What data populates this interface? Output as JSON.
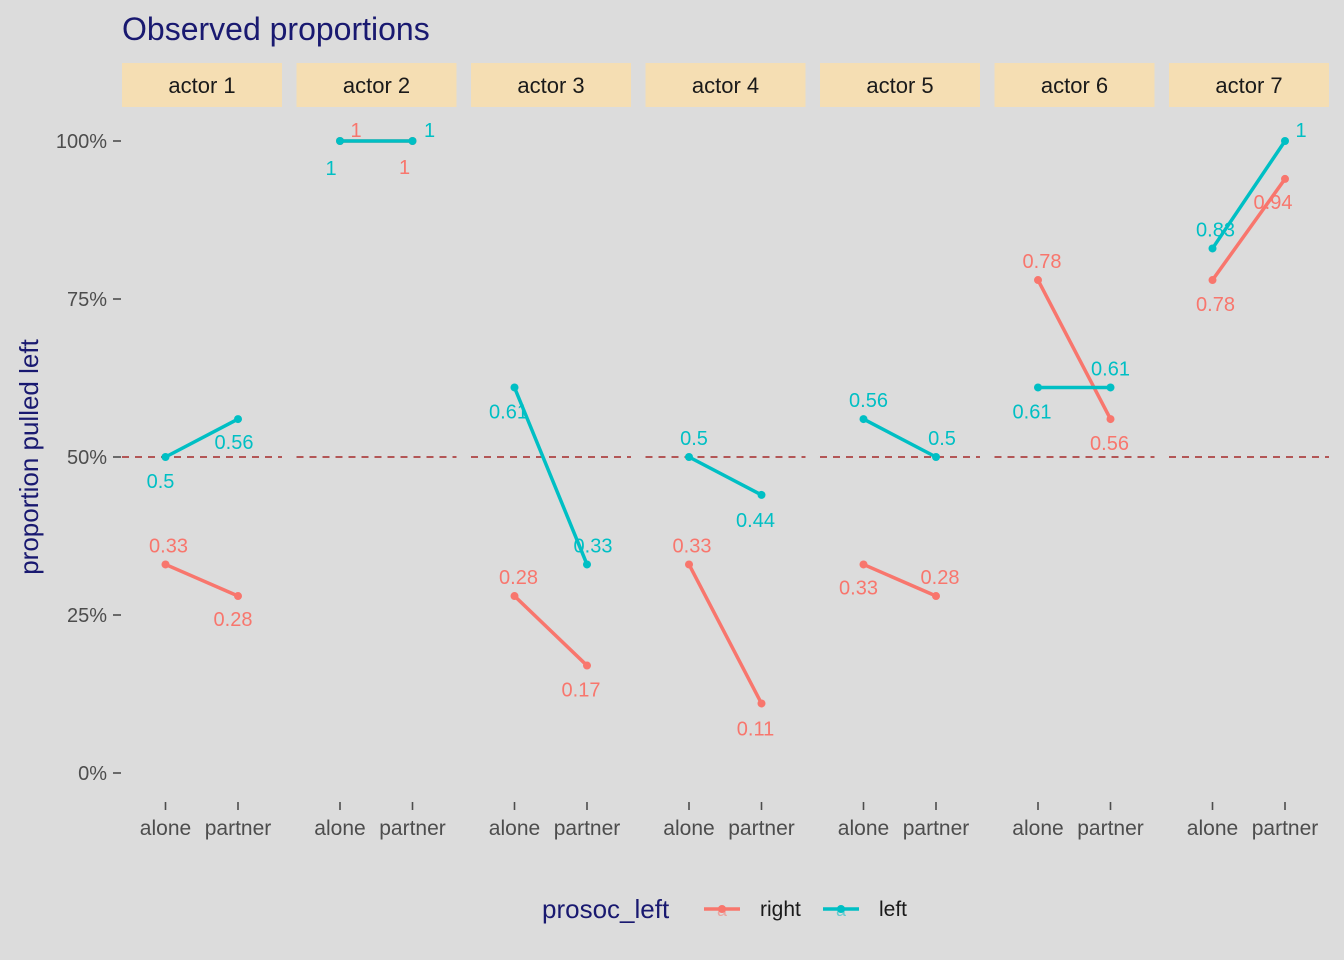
{
  "chart_data": {
    "type": "line",
    "title": "Observed proportions",
    "ylabel": "proportion pulled left",
    "xlabel": "",
    "ylim": [
      0,
      1
    ],
    "yticks": [
      "0%",
      "25%",
      "50%",
      "75%",
      "100%"
    ],
    "categories": [
      "alone",
      "partner"
    ],
    "reference_line": 0.5,
    "panels": [
      {
        "label": "actor 1",
        "series": [
          {
            "name": "right",
            "values": [
              0.33,
              0.28
            ]
          },
          {
            "name": "left",
            "values": [
              0.5,
              0.56
            ]
          }
        ]
      },
      {
        "label": "actor 2",
        "series": [
          {
            "name": "right",
            "values": [
              1,
              1
            ]
          },
          {
            "name": "left",
            "values": [
              1,
              1
            ]
          }
        ]
      },
      {
        "label": "actor 3",
        "series": [
          {
            "name": "right",
            "values": [
              0.28,
              0.17
            ]
          },
          {
            "name": "left",
            "values": [
              0.61,
              0.33
            ]
          }
        ]
      },
      {
        "label": "actor 4",
        "series": [
          {
            "name": "right",
            "values": [
              0.33,
              0.11
            ]
          },
          {
            "name": "left",
            "values": [
              0.5,
              0.44
            ]
          }
        ]
      },
      {
        "label": "actor 5",
        "series": [
          {
            "name": "right",
            "values": [
              0.33,
              0.28
            ]
          },
          {
            "name": "left",
            "values": [
              0.56,
              0.5
            ]
          }
        ]
      },
      {
        "label": "actor 6",
        "series": [
          {
            "name": "right",
            "values": [
              0.78,
              0.56
            ]
          },
          {
            "name": "left",
            "values": [
              0.61,
              0.61
            ]
          }
        ]
      },
      {
        "label": "actor 7",
        "series": [
          {
            "name": "right",
            "values": [
              0.78,
              0.94
            ]
          },
          {
            "name": "left",
            "values": [
              0.83,
              1
            ]
          }
        ]
      }
    ],
    "legend": {
      "title": "prosoc_left",
      "position": "bottom",
      "glyph": "a",
      "entries": [
        {
          "name": "right",
          "color": "#f8766d"
        },
        {
          "name": "left",
          "color": "#00bfc4"
        }
      ]
    },
    "colors": {
      "right": "#f8766d",
      "left": "#00bfc4",
      "reference_line": "#a52a2a",
      "strip": "#f5deb3",
      "panel_background": "#dcdcdc",
      "title": "#191970"
    }
  }
}
